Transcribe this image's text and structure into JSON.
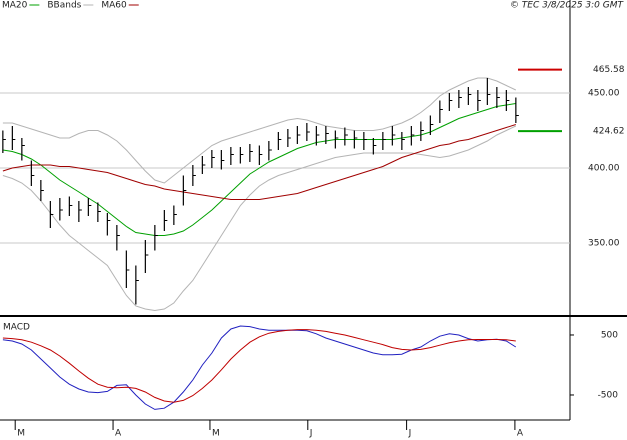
{
  "chart_data": [
    {
      "type": "hlc",
      "annotation": "© TEC 3/8/2025 3:0 GMT",
      "bar_color": "#000000",
      "high": [
        425,
        428,
        420,
        405,
        392,
        378,
        380,
        381,
        378,
        380,
        377,
        370,
        362,
        345,
        335,
        352,
        362,
        372,
        375,
        395,
        402,
        408,
        412,
        412,
        414,
        414,
        416,
        415,
        418,
        424,
        426,
        428,
        430,
        428,
        428,
        425,
        427,
        425,
        424,
        420,
        424,
        428,
        424,
        428,
        431,
        435,
        445,
        450,
        452,
        454,
        452,
        460,
        454,
        452,
        447
      ],
      "low": [
        410,
        412,
        405,
        388,
        378,
        360,
        365,
        368,
        364,
        368,
        364,
        355,
        345,
        320,
        309,
        330,
        345,
        358,
        362,
        375,
        388,
        396,
        400,
        399,
        402,
        403,
        404,
        402,
        405,
        412,
        414,
        416,
        418,
        415,
        416,
        413,
        415,
        413,
        412,
        409,
        412,
        415,
        412,
        415,
        418,
        422,
        430,
        438,
        440,
        442,
        438,
        442,
        440,
        438,
        430
      ],
      "close": [
        419,
        419,
        415,
        395,
        385,
        369,
        372,
        375,
        372,
        375,
        371,
        365,
        355,
        332,
        325,
        342,
        355,
        365,
        369,
        385,
        395,
        402,
        407,
        405,
        409,
        409,
        411,
        409,
        412,
        419,
        420,
        422,
        424,
        422,
        423,
        420,
        422,
        420,
        419,
        415,
        419,
        422,
        419,
        422,
        425,
        429,
        439,
        445,
        447,
        449,
        445,
        449,
        447,
        445,
        435
      ],
      "series": [
        {
          "name": "MA20",
          "color": "#00a000",
          "values": [
            412,
            411,
            409,
            406,
            402,
            397,
            392,
            388,
            384,
            380,
            376,
            371,
            366,
            361,
            357,
            356,
            355,
            355,
            356,
            358,
            362,
            367,
            372,
            378,
            384,
            390,
            396,
            400,
            404,
            407,
            410,
            413,
            415,
            417,
            418,
            419,
            419,
            419,
            419,
            419,
            419,
            419,
            420,
            421,
            422,
            424,
            427,
            430,
            433,
            435,
            437,
            439,
            441,
            442,
            443
          ]
        },
        {
          "name": "BBands",
          "color": "#b4b4b4",
          "upper": [
            430,
            430,
            428,
            426,
            424,
            422,
            420,
            420,
            423,
            425,
            425,
            422,
            418,
            412,
            405,
            398,
            392,
            390,
            395,
            400,
            405,
            410,
            415,
            418,
            420,
            422,
            424,
            426,
            428,
            430,
            432,
            433,
            432,
            430,
            428,
            427,
            426,
            425,
            425,
            425,
            426,
            428,
            430,
            433,
            437,
            442,
            448,
            452,
            455,
            458,
            460,
            460,
            458,
            455,
            452
          ],
          "lower": [
            395,
            393,
            390,
            385,
            378,
            370,
            362,
            355,
            350,
            345,
            340,
            335,
            325,
            315,
            308,
            306,
            305,
            306,
            310,
            318,
            325,
            335,
            345,
            355,
            365,
            375,
            382,
            388,
            392,
            395,
            397,
            399,
            401,
            403,
            405,
            407,
            408,
            409,
            410,
            410,
            410,
            410,
            410,
            410,
            409,
            408,
            407,
            408,
            410,
            412,
            415,
            418,
            422,
            425,
            428
          ]
        },
        {
          "name": "MA60",
          "color": "#a00000",
          "values": [
            398,
            400,
            401,
            402,
            402,
            402,
            401,
            401,
            400,
            399,
            398,
            397,
            395,
            393,
            391,
            389,
            388,
            386,
            385,
            384,
            383,
            382,
            381,
            380,
            379,
            379,
            379,
            379,
            380,
            381,
            382,
            383,
            385,
            387,
            389,
            391,
            393,
            395,
            397,
            399,
            401,
            404,
            407,
            409,
            411,
            413,
            415,
            416,
            418,
            419,
            421,
            423,
            425,
            427,
            429
          ]
        }
      ],
      "markers": [
        {
          "value": 465.58,
          "color": "#cc0000"
        },
        {
          "value": 424.62,
          "color": "#00a000"
        }
      ],
      "xlim": [
        -0.3,
        59.7
      ],
      "ylim": [
        302,
        512
      ],
      "yticks": [
        {
          "value": 450,
          "label": "450.00"
        },
        {
          "value": 400,
          "label": "400.00"
        },
        {
          "value": 350,
          "label": "350.00"
        }
      ],
      "grid": true
    },
    {
      "type": "line",
      "title": "MACD",
      "series": [
        {
          "color": "#2020c0",
          "values": [
            420,
            400,
            350,
            250,
            100,
            -50,
            -200,
            -320,
            -400,
            -450,
            -460,
            -440,
            -340,
            -330,
            -500,
            -650,
            -740,
            -720,
            -620,
            -450,
            -250,
            0,
            200,
            450,
            600,
            650,
            640,
            600,
            580,
            580,
            580,
            580,
            570,
            520,
            450,
            400,
            350,
            300,
            250,
            200,
            170,
            170,
            180,
            250,
            300,
            400,
            480,
            520,
            500,
            440,
            400,
            420,
            430,
            400,
            300
          ]
        },
        {
          "color": "#c00000",
          "values": [
            450,
            440,
            420,
            380,
            320,
            250,
            150,
            30,
            -100,
            -220,
            -320,
            -370,
            -380,
            -370,
            -390,
            -450,
            -540,
            -600,
            -620,
            -590,
            -510,
            -390,
            -250,
            -80,
            100,
            250,
            380,
            470,
            530,
            560,
            580,
            590,
            590,
            580,
            560,
            530,
            500,
            460,
            420,
            380,
            340,
            290,
            260,
            250,
            260,
            290,
            330,
            370,
            400,
            420,
            425,
            425,
            425,
            420,
            400
          ]
        }
      ],
      "xlim": [
        -0.3,
        59.7
      ],
      "xticks": [
        {
          "value": 1.3,
          "label": "M"
        },
        {
          "value": 11.6,
          "label": "A"
        },
        {
          "value": 21.8,
          "label": "M"
        },
        {
          "value": 32.1,
          "label": "J"
        },
        {
          "value": 42.5,
          "label": "J"
        },
        {
          "value": 53.9,
          "label": "A"
        }
      ],
      "ylim": [
        -917,
        783
      ],
      "yticks": [
        500,
        -500
      ]
    }
  ]
}
